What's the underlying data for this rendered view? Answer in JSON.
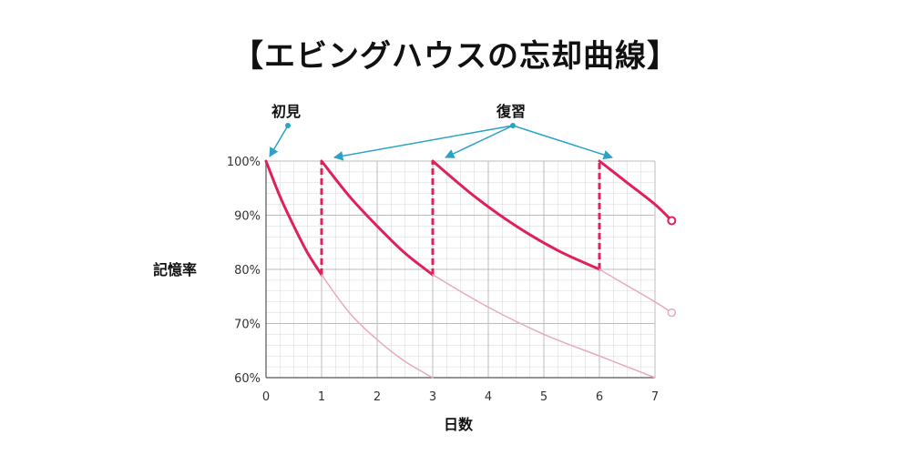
{
  "title": "【エビングハウスの忘却曲線】",
  "colors": {
    "main": "#e0205a",
    "faded": "#e8aabb",
    "grid": "#bcbcbc",
    "arrow": "#2aa3c7"
  },
  "chart_data": {
    "type": "line",
    "title": "【エビングハウスの忘却曲線】",
    "xlabel": "日数",
    "ylabel": "記憶率",
    "xlim": [
      0,
      7
    ],
    "ylim": [
      60,
      100
    ],
    "x_ticks": [
      "0",
      "1",
      "2",
      "3",
      "4",
      "5",
      "6",
      "7"
    ],
    "y_ticks": [
      "60%",
      "70%",
      "80%",
      "90%",
      "100%"
    ],
    "grid": true,
    "annotations": [
      {
        "text": "初見",
        "points_to": [
          [
            0,
            100
          ]
        ]
      },
      {
        "text": "復習",
        "points_to": [
          [
            1,
            100
          ],
          [
            3,
            100
          ],
          [
            6,
            100
          ]
        ]
      }
    ],
    "series": [
      {
        "style": "solid-bold",
        "x": [
          0,
          0.25,
          0.5,
          0.75,
          1
        ],
        "y": [
          100,
          93.5,
          88,
          83,
          79
        ]
      },
      {
        "style": "dashed-bold",
        "x": [
          1,
          1
        ],
        "y": [
          79,
          100
        ]
      },
      {
        "style": "solid-bold",
        "x": [
          1,
          1.5,
          2,
          2.5,
          3
        ],
        "y": [
          100,
          93.5,
          88,
          83,
          79
        ]
      },
      {
        "style": "dashed-bold",
        "x": [
          3,
          3
        ],
        "y": [
          79,
          100
        ]
      },
      {
        "style": "solid-bold",
        "x": [
          3,
          3.75,
          4.5,
          5.25,
          6
        ],
        "y": [
          100,
          93.5,
          88,
          83.5,
          80
        ]
      },
      {
        "style": "dashed-bold",
        "x": [
          6,
          6
        ],
        "y": [
          80,
          100
        ]
      },
      {
        "style": "solid-bold",
        "x": [
          6,
          6.5,
          7,
          7.3
        ],
        "y": [
          100,
          96,
          92,
          89
        ]
      },
      {
        "style": "thin-faded",
        "x": [
          1,
          1.5,
          2,
          2.5,
          3
        ],
        "y": [
          79,
          72,
          67,
          63,
          60
        ]
      },
      {
        "style": "thin-faded",
        "x": [
          3,
          4,
          5,
          6,
          7
        ],
        "y": [
          79,
          73,
          68,
          64,
          60
        ]
      },
      {
        "style": "thin-faded",
        "x": [
          6,
          6.5,
          7,
          7.3
        ],
        "y": [
          80,
          77,
          74,
          72
        ]
      }
    ]
  }
}
